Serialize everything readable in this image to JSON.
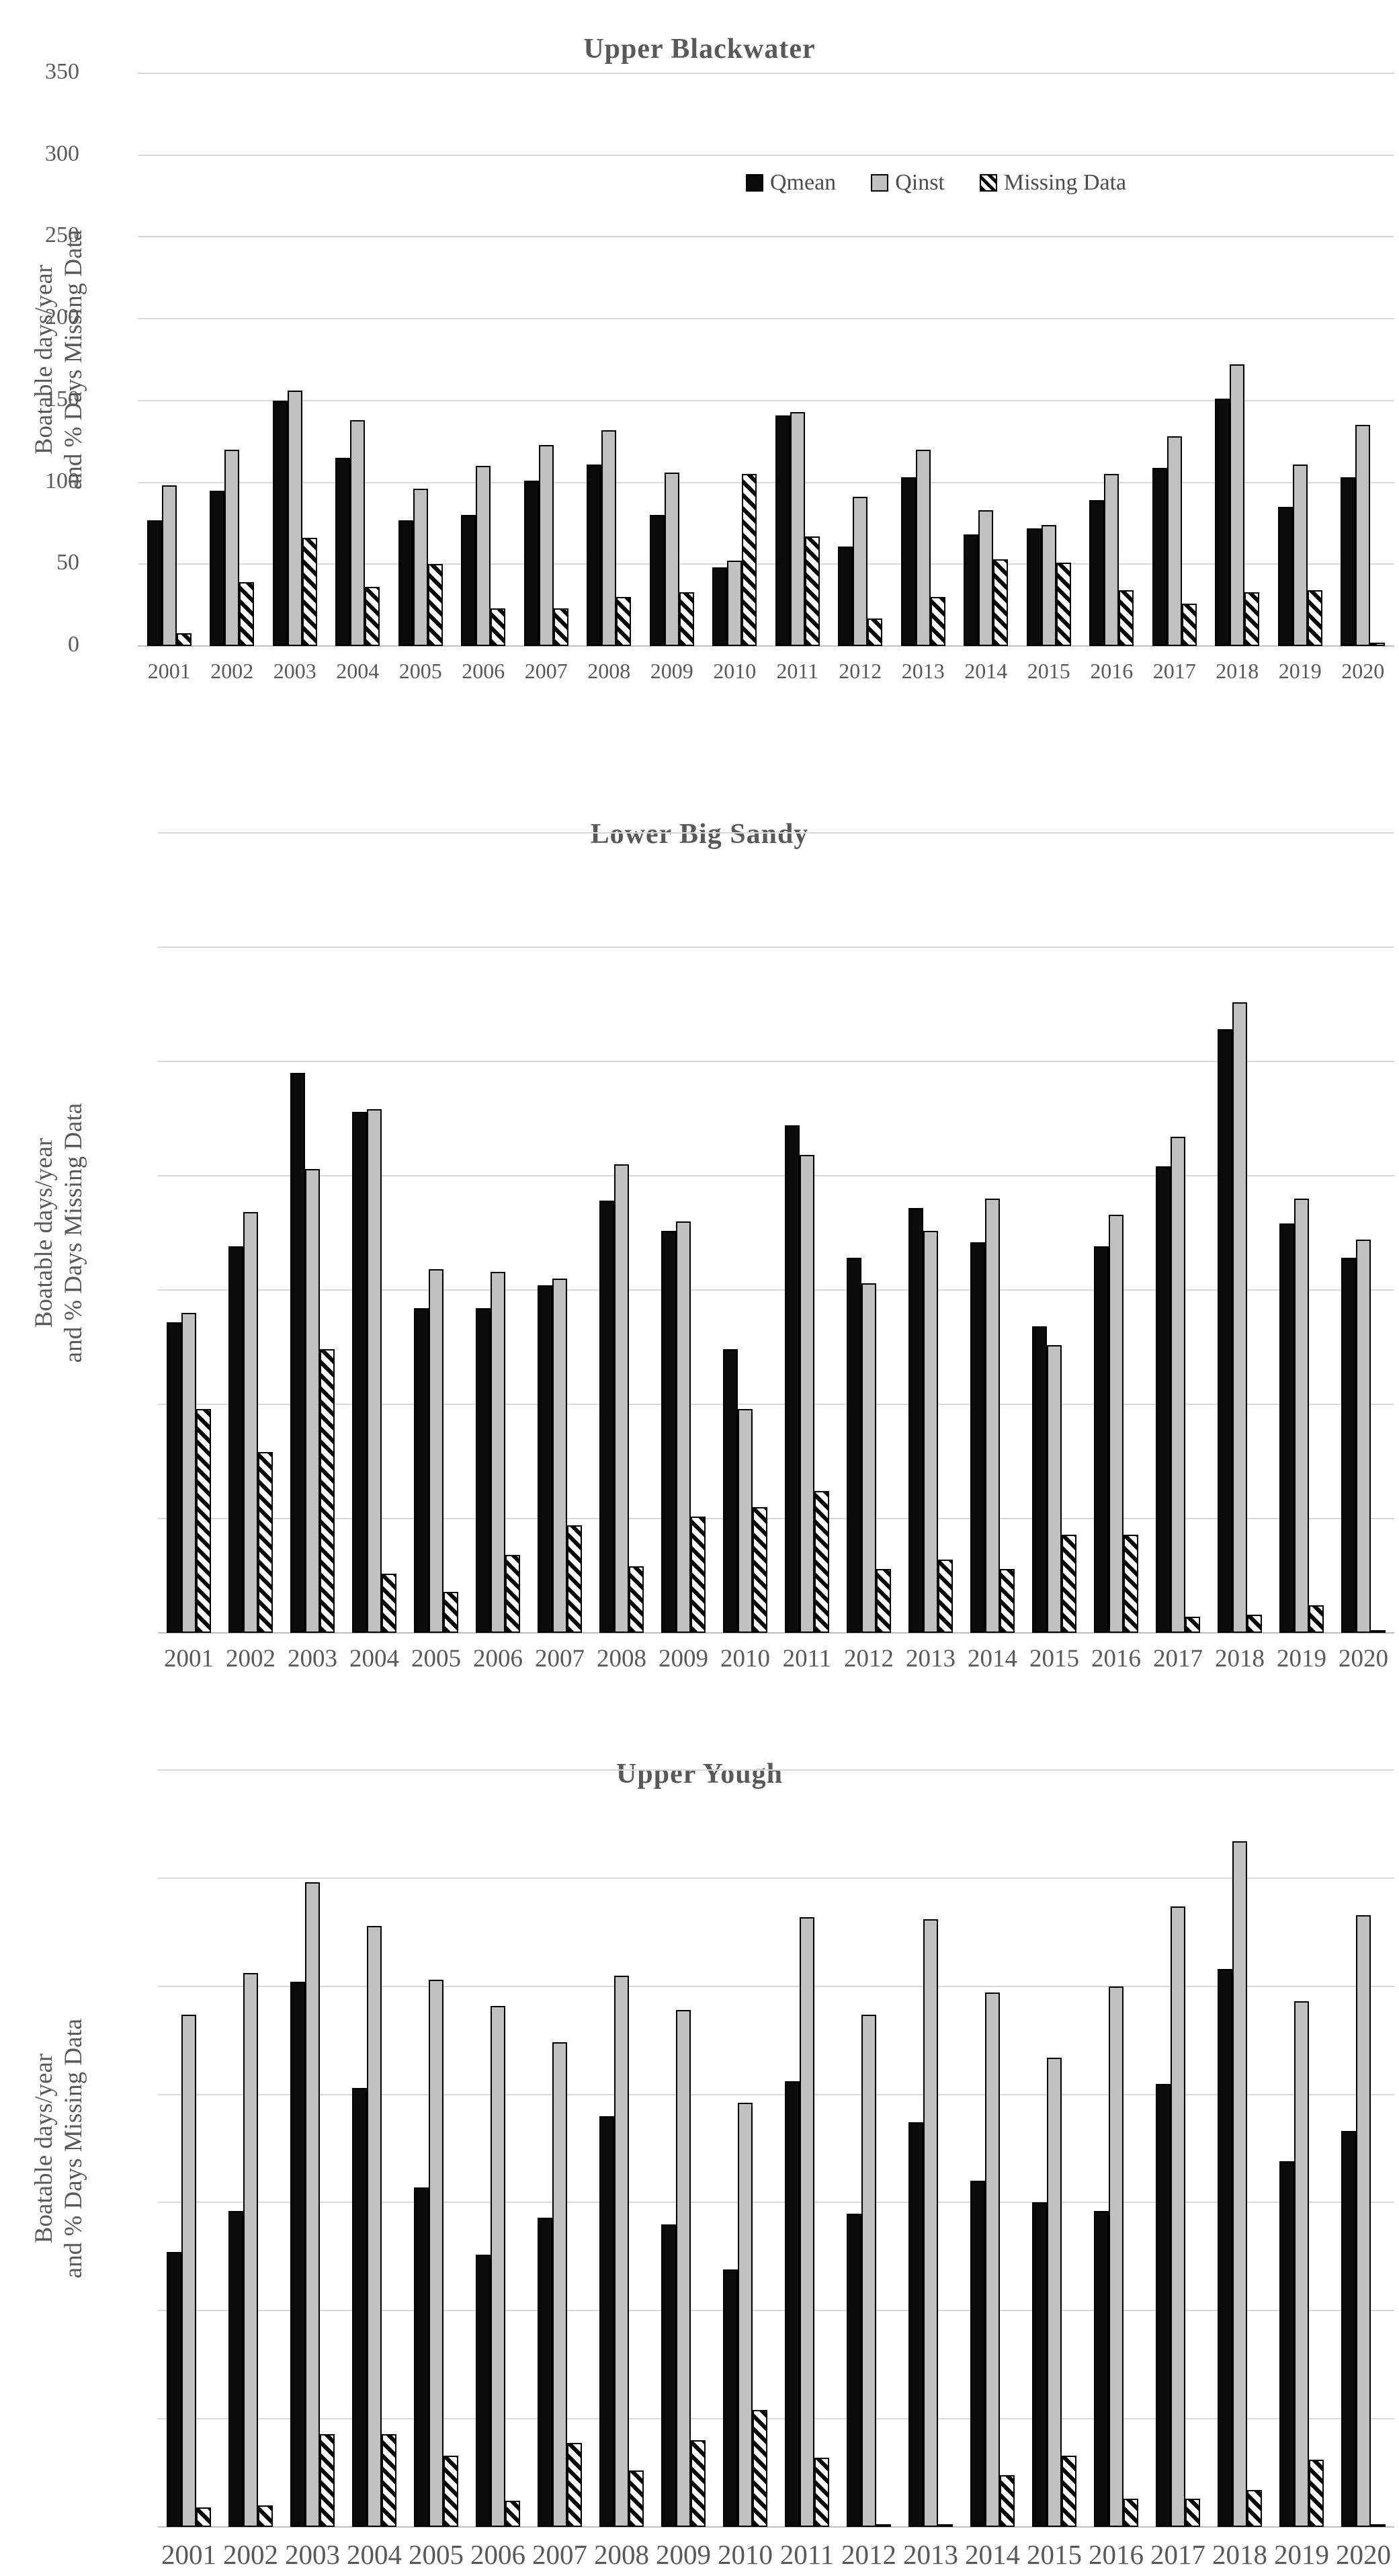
{
  "page_background": "#ffffff",
  "ylabel": {
    "line1": "Boatable days/year",
    "line2": "and % Days Missing Data"
  },
  "legend": {
    "items": [
      {
        "label": "Qmean",
        "swatch": "solid-black-square"
      },
      {
        "label": "Qinst",
        "swatch": "gray-square-black-border"
      },
      {
        "label": "Missing Data",
        "swatch": "black-white-diagonal-hatch-square"
      }
    ]
  },
  "colors": {
    "qmean_fill": "#0b0b0b",
    "qinst_fill": "#c0c0c0",
    "hatch_foreground": "#000000",
    "hatch_background": "#ffffff",
    "bar_border": "#000000",
    "gridline": "#d9d9d9",
    "axis_line": "#bfbfbf",
    "text": "#595959"
  },
  "chart_data": [
    {
      "type": "bar",
      "title": "Upper Blackwater",
      "xlabel": "",
      "ylabel": "Boatable days/year and % Days Missing Data",
      "ylim": [
        0,
        350
      ],
      "ytick_step": 50,
      "yticks": [
        "350",
        "300",
        "250",
        "200",
        "150",
        "100",
        "50",
        "0"
      ],
      "yticks_visible": true,
      "grid": true,
      "legend_position": "inside-top-right",
      "legend_visible": true,
      "categories": [
        "2001",
        "2002",
        "2003",
        "2004",
        "2005",
        "2006",
        "2007",
        "2008",
        "2009",
        "2010",
        "2011",
        "2012",
        "2013",
        "2014",
        "2015",
        "2016",
        "2017",
        "2018",
        "2019",
        "2020"
      ],
      "series": [
        {
          "name": "Qmean",
          "values": [
            77,
            95,
            150,
            115,
            77,
            80,
            101,
            111,
            80,
            48,
            141,
            61,
            103,
            68,
            72,
            89,
            109,
            151,
            85,
            103
          ]
        },
        {
          "name": "Qinst",
          "values": [
            98,
            120,
            156,
            138,
            96,
            110,
            123,
            132,
            106,
            52,
            143,
            91,
            120,
            83,
            74,
            105,
            128,
            172,
            111,
            135
          ]
        },
        {
          "name": "Missing Data",
          "values": [
            8,
            39,
            66,
            36,
            50,
            23,
            23,
            30,
            33,
            105,
            67,
            17,
            30,
            53,
            51,
            34,
            26,
            33,
            34,
            2
          ]
        }
      ]
    },
    {
      "type": "bar",
      "title": "Lower Big Sandy",
      "xlabel": "",
      "ylabel": "Boatable days/year and % Days Missing Data",
      "ylim": [
        0,
        350
      ],
      "ytick_step": 50,
      "yticks": [],
      "yticks_visible": false,
      "grid": true,
      "legend_visible": false,
      "categories": [
        "2001",
        "2002",
        "2003",
        "2004",
        "2005",
        "2006",
        "2007",
        "2008",
        "2009",
        "2010",
        "2011",
        "2012",
        "2013",
        "2014",
        "2015",
        "2016",
        "2017",
        "2018",
        "2019",
        "2020"
      ],
      "series": [
        {
          "name": "Qmean",
          "values": [
            136,
            169,
            245,
            228,
            142,
            142,
            152,
            189,
            176,
            124,
            222,
            164,
            186,
            171,
            134,
            169,
            204,
            264,
            179,
            164
          ]
        },
        {
          "name": "Qinst",
          "values": [
            140,
            184,
            203,
            229,
            159,
            158,
            155,
            205,
            180,
            98,
            209,
            153,
            176,
            190,
            126,
            183,
            217,
            276,
            190,
            172
          ]
        },
        {
          "name": "Missing Data",
          "values": [
            98,
            79,
            124,
            26,
            18,
            34,
            47,
            29,
            51,
            55,
            62,
            28,
            32,
            28,
            43,
            43,
            7,
            8,
            12,
            1
          ]
        }
      ]
    },
    {
      "type": "bar",
      "title": "Upper Yough",
      "xlabel": "",
      "ylabel": "Boatable days/year and % Days Missing Data",
      "ylim": [
        0,
        350
      ],
      "ytick_step": 50,
      "yticks": [],
      "yticks_visible": false,
      "grid": true,
      "legend_visible": false,
      "categories": [
        "2001",
        "2002",
        "2003",
        "2004",
        "2005",
        "2006",
        "2007",
        "2008",
        "2009",
        "2010",
        "2011",
        "2012",
        "2013",
        "2014",
        "2015",
        "2016",
        "2017",
        "2018",
        "2019",
        "2020"
      ],
      "series": [
        {
          "name": "Qmean",
          "values": [
            127,
            146,
            252,
            203,
            157,
            126,
            143,
            190,
            140,
            119,
            206,
            145,
            187,
            160,
            150,
            146,
            205,
            258,
            169,
            183
          ]
        },
        {
          "name": "Qinst",
          "values": [
            237,
            256,
            298,
            278,
            253,
            241,
            224,
            255,
            239,
            196,
            282,
            237,
            281,
            247,
            217,
            250,
            287,
            317,
            243,
            283
          ]
        },
        {
          "name": "Missing Data",
          "values": [
            9,
            10,
            43,
            43,
            33,
            12,
            39,
            26,
            40,
            54,
            32,
            1,
            1,
            24,
            33,
            13,
            13,
            17,
            31,
            1
          ]
        }
      ]
    }
  ]
}
